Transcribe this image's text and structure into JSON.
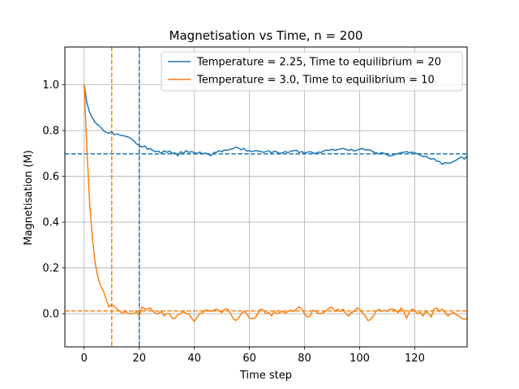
{
  "chart_data": {
    "type": "line",
    "title": "Magnetisation vs Time, n = 200",
    "xlabel": "Time step",
    "ylabel": "Magnetisation (M)",
    "xlim": [
      -7,
      139
    ],
    "ylim": [
      -0.145,
      1.165
    ],
    "xticks": [
      0,
      20,
      40,
      60,
      80,
      100,
      120
    ],
    "yticks": [
      0.0,
      0.2,
      0.4,
      0.6,
      0.8,
      1.0
    ],
    "xtick_labels": [
      "0",
      "20",
      "40",
      "60",
      "80",
      "100",
      "120"
    ],
    "ytick_labels": [
      "0.0",
      "0.2",
      "0.4",
      "0.6",
      "0.8",
      "1.0"
    ],
    "grid": true,
    "legend_position": "top-right",
    "colors": {
      "series1": "#1f77b4",
      "series2": "#ff7f0e"
    },
    "series": [
      {
        "name": "Temperature = 2.25, Time to equilibrium = 20",
        "color": "#1f77b4",
        "equilibrium_time": 20,
        "equilibrium_level": 0.698,
        "x": [
          0,
          1,
          2,
          3,
          4,
          5,
          6,
          7,
          8,
          9,
          10,
          11,
          12,
          13,
          14,
          15,
          16,
          17,
          18,
          19,
          20,
          21,
          22,
          23,
          24,
          25,
          26,
          27,
          28,
          29,
          30,
          31,
          32,
          33,
          34,
          35,
          36,
          37,
          38,
          39,
          40,
          41,
          42,
          43,
          44,
          45,
          46,
          47,
          48,
          49,
          50,
          51,
          52,
          53,
          54,
          55,
          56,
          57,
          58,
          59,
          60,
          61,
          62,
          63,
          64,
          65,
          66,
          67,
          68,
          69,
          70,
          71,
          72,
          73,
          74,
          75,
          76,
          77,
          78,
          79,
          80,
          81,
          82,
          83,
          84,
          85,
          86,
          87,
          88,
          89,
          90,
          91,
          92,
          93,
          94,
          95,
          96,
          97,
          98,
          99,
          100,
          101,
          102,
          103,
          104,
          105,
          106,
          107,
          108,
          109,
          110,
          111,
          112,
          113,
          114,
          115,
          116,
          117,
          118,
          119,
          120,
          121,
          122,
          123,
          124,
          125,
          126,
          127,
          128,
          129,
          130,
          131,
          132,
          133,
          134,
          135,
          136,
          137,
          138,
          139
        ],
        "values": [
          1.0,
          0.92,
          0.88,
          0.855,
          0.835,
          0.825,
          0.815,
          0.8,
          0.792,
          0.788,
          0.795,
          0.782,
          0.785,
          0.78,
          0.778,
          0.775,
          0.772,
          0.765,
          0.755,
          0.742,
          0.735,
          0.728,
          0.733,
          0.718,
          0.722,
          0.712,
          0.708,
          0.71,
          0.7,
          0.712,
          0.705,
          0.71,
          0.7,
          0.702,
          0.69,
          0.708,
          0.7,
          0.712,
          0.705,
          0.708,
          0.703,
          0.7,
          0.706,
          0.698,
          0.702,
          0.696,
          0.69,
          0.703,
          0.705,
          0.712,
          0.708,
          0.715,
          0.713,
          0.718,
          0.72,
          0.728,
          0.724,
          0.716,
          0.722,
          0.71,
          0.712,
          0.708,
          0.712,
          0.711,
          0.709,
          0.705,
          0.708,
          0.712,
          0.702,
          0.71,
          0.706,
          0.7,
          0.703,
          0.708,
          0.703,
          0.71,
          0.712,
          0.714,
          0.704,
          0.708,
          0.702,
          0.705,
          0.708,
          0.703,
          0.7,
          0.706,
          0.704,
          0.711,
          0.715,
          0.713,
          0.718,
          0.714,
          0.716,
          0.72,
          0.722,
          0.718,
          0.713,
          0.718,
          0.71,
          0.715,
          0.718,
          0.722,
          0.715,
          0.716,
          0.714,
          0.706,
          0.703,
          0.698,
          0.704,
          0.7,
          0.693,
          0.688,
          0.692,
          0.696,
          0.7,
          0.703,
          0.705,
          0.708,
          0.703,
          0.706,
          0.702,
          0.698,
          0.692,
          0.686,
          0.688,
          0.68,
          0.675,
          0.678,
          0.666,
          0.665,
          0.652,
          0.66,
          0.658,
          0.658,
          0.665,
          0.67,
          0.678,
          0.685,
          0.675,
          0.688
        ]
      },
      {
        "name": "Temperature = 3.0, Time to equilibrium = 10",
        "color": "#ff7f0e",
        "equilibrium_time": 10,
        "equilibrium_level": 0.012,
        "x": [
          0,
          1,
          2,
          3,
          4,
          5,
          6,
          7,
          8,
          9,
          10,
          11,
          12,
          13,
          14,
          15,
          16,
          17,
          18,
          19,
          20,
          21,
          22,
          23,
          24,
          25,
          26,
          27,
          28,
          29,
          30,
          31,
          32,
          33,
          34,
          35,
          36,
          37,
          38,
          39,
          40,
          41,
          42,
          43,
          44,
          45,
          46,
          47,
          48,
          49,
          50,
          51,
          52,
          53,
          54,
          55,
          56,
          57,
          58,
          59,
          60,
          61,
          62,
          63,
          64,
          65,
          66,
          67,
          68,
          69,
          70,
          71,
          72,
          73,
          74,
          75,
          76,
          77,
          78,
          79,
          80,
          81,
          82,
          83,
          84,
          85,
          86,
          87,
          88,
          89,
          90,
          91,
          92,
          93,
          94,
          95,
          96,
          97,
          98,
          99,
          100,
          101,
          102,
          103,
          104,
          105,
          106,
          107,
          108,
          109,
          110,
          111,
          112,
          113,
          114,
          115,
          116,
          117,
          118,
          119,
          120,
          121,
          122,
          123,
          124,
          125,
          126,
          127,
          128,
          129,
          130,
          131,
          132,
          133,
          134,
          135,
          136,
          137,
          138,
          139
        ],
        "values": [
          1.0,
          0.72,
          0.48,
          0.33,
          0.22,
          0.16,
          0.12,
          0.1,
          0.06,
          0.03,
          0.04,
          0.03,
          0.02,
          0.01,
          0.0,
          0.01,
          0.0,
          0.0,
          0.0,
          0.01,
          -0.01,
          0.03,
          0.02,
          0.02,
          0.025,
          0.01,
          0.0,
          0.0,
          0.01,
          -0.01,
          0.0,
          0.0,
          -0.02,
          -0.02,
          -0.005,
          0.0,
          0.01,
          0.0,
          0.0,
          -0.02,
          -0.035,
          -0.015,
          0.0,
          0.005,
          0.015,
          0.015,
          0.01,
          0.015,
          0.02,
          0.012,
          0.005,
          0.02,
          0.02,
          0.005,
          -0.02,
          -0.03,
          -0.02,
          0.0,
          0.01,
          0.0,
          -0.02,
          -0.02,
          -0.02,
          0.0,
          0.02,
          0.015,
          0.0,
          0.005,
          -0.01,
          0.01,
          0.0,
          0.005,
          0.01,
          0.0,
          0.01,
          0.015,
          0.01,
          0.02,
          0.03,
          0.02,
          0.0,
          -0.015,
          -0.01,
          0.015,
          0.01,
          0.0,
          0.0,
          0.005,
          0.015,
          0.025,
          0.028,
          0.01,
          0.02,
          0.01,
          0.02,
          0.0,
          -0.01,
          0.005,
          0.01,
          0.025,
          0.02,
          0.005,
          -0.01,
          -0.03,
          -0.025,
          -0.01,
          0.01,
          0.02,
          0.01,
          0.015,
          0.01,
          0.02,
          0.02,
          0.015,
          0.005,
          0.025,
          0.01,
          -0.02,
          0.005,
          0.02,
          0.015,
          0.0,
          0.005,
          -0.01,
          0.01,
          0.0,
          -0.015,
          0.02,
          0.025,
          0.01,
          0.02,
          0.005,
          -0.01,
          0.0,
          0.005,
          -0.005,
          -0.01,
          -0.02,
          -0.025,
          -0.02
        ]
      }
    ]
  }
}
